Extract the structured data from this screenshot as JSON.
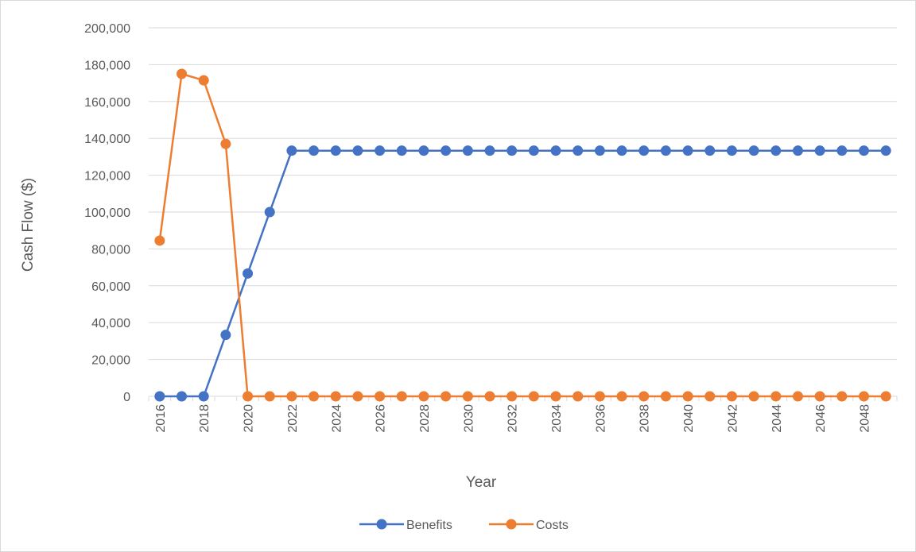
{
  "chart_data": {
    "type": "line",
    "title": "",
    "xlabel": "Year",
    "ylabel": "Cash Flow ($)",
    "x": [
      2016,
      2017,
      2018,
      2019,
      2020,
      2021,
      2022,
      2023,
      2024,
      2025,
      2026,
      2027,
      2028,
      2029,
      2030,
      2031,
      2032,
      2033,
      2034,
      2035,
      2036,
      2037,
      2038,
      2039,
      2040,
      2041,
      2042,
      2043,
      2044,
      2045,
      2046,
      2047,
      2048,
      2049
    ],
    "x_tick_labels": [
      "2016",
      "2018",
      "2020",
      "2022",
      "2024",
      "2026",
      "2028",
      "2030",
      "2032",
      "2034",
      "2036",
      "2038",
      "2040",
      "2042",
      "2044",
      "2046",
      "2048"
    ],
    "y_tick_labels": [
      "0",
      "20,000",
      "40,000",
      "60,000",
      "80,000",
      "100,000",
      "120,000",
      "140,000",
      "160,000",
      "180,000",
      "200,000"
    ],
    "ylim": [
      0,
      200000
    ],
    "grid": "horizontal",
    "legend_position": "bottom",
    "series": [
      {
        "name": "Benefits",
        "color": "#4472c4",
        "values": [
          0,
          0,
          0,
          33333,
          66667,
          100000,
          133333,
          133333,
          133333,
          133333,
          133333,
          133333,
          133333,
          133333,
          133333,
          133333,
          133333,
          133333,
          133333,
          133333,
          133333,
          133333,
          133333,
          133333,
          133333,
          133333,
          133333,
          133333,
          133333,
          133333,
          133333,
          133333,
          133333,
          133333
        ]
      },
      {
        "name": "Costs",
        "color": "#ed7d31",
        "values": [
          84500,
          175000,
          171500,
          137000,
          0,
          0,
          0,
          0,
          0,
          0,
          0,
          0,
          0,
          0,
          0,
          0,
          0,
          0,
          0,
          0,
          0,
          0,
          0,
          0,
          0,
          0,
          0,
          0,
          0,
          0,
          0,
          0,
          0,
          0
        ]
      }
    ]
  }
}
